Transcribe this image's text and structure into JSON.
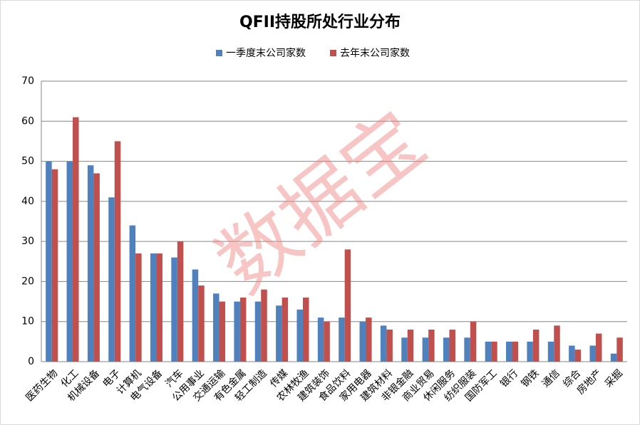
{
  "chart_data": {
    "type": "bar",
    "title": "QFII持股所处行业分布",
    "watermark": "数据宝",
    "categories": [
      "医药生物",
      "化工",
      "机械设备",
      "电子",
      "计算机",
      "电气设备",
      "汽车",
      "公用事业",
      "交通运输",
      "有色金属",
      "轻工制造",
      "传媒",
      "农林牧渔",
      "建筑装饰",
      "食品饮料",
      "家用电器",
      "建筑材料",
      "非银金融",
      "商业贸易",
      "休闲服务",
      "纺织服装",
      "国防军工",
      "银行",
      "钢铁",
      "通信",
      "综合",
      "房地产",
      "采掘"
    ],
    "series": [
      {
        "name": "一季度末公司家数",
        "color": "#4f81bd",
        "values": [
          50,
          50,
          49,
          41,
          34,
          27,
          26,
          23,
          17,
          15,
          15,
          14,
          13,
          11,
          11,
          10,
          9,
          6,
          6,
          6,
          6,
          5,
          5,
          5,
          5,
          4,
          4,
          2
        ]
      },
      {
        "name": "去年末公司家数",
        "color": "#c0504d",
        "values": [
          48,
          61,
          47,
          55,
          27,
          27,
          30,
          19,
          15,
          16,
          18,
          16,
          16,
          10,
          28,
          11,
          8,
          8,
          8,
          8,
          10,
          5,
          5,
          8,
          9,
          3,
          7,
          6
        ]
      }
    ],
    "ylim": [
      0,
      70
    ],
    "yticks": [
      0,
      10,
      20,
      30,
      40,
      50,
      60,
      70
    ],
    "grid": true,
    "legend": "top"
  }
}
